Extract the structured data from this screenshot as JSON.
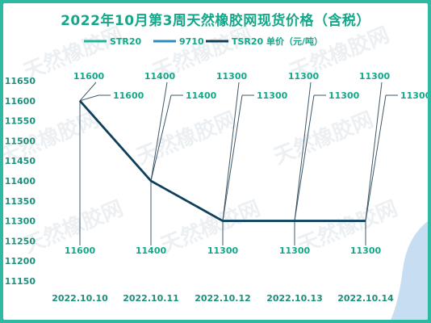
{
  "chart_data": {
    "type": "line",
    "title": "2022年10月第3周天然橡胶网现货价格（含税）",
    "categories": [
      "2022.10.10",
      "2022.10.11",
      "2022.10.12",
      "2022.10.13",
      "2022.10.14"
    ],
    "series": [
      {
        "name": "STR20",
        "color": "#1fb59b",
        "values": [
          11600,
          11400,
          11300,
          11300,
          11300
        ],
        "label_style": "lower"
      },
      {
        "name": "9710",
        "color": "#2a8fbf",
        "values": [
          11600,
          11400,
          11300,
          11300,
          11300
        ],
        "label_style": "upper"
      },
      {
        "name": "TSR20 单价（元/吨）",
        "color": "#143d59",
        "values": [
          11600,
          11400,
          11300,
          11300,
          11300
        ],
        "label_style": "top"
      }
    ],
    "yticks": [
      11150,
      11200,
      11250,
      11300,
      11350,
      11400,
      11450,
      11500,
      11550,
      11600,
      11650
    ],
    "ylim": [
      11150,
      11650
    ],
    "xlabel": "",
    "ylabel": "",
    "legend_position": "top",
    "grid": false
  },
  "watermark": "天然橡胶网"
}
